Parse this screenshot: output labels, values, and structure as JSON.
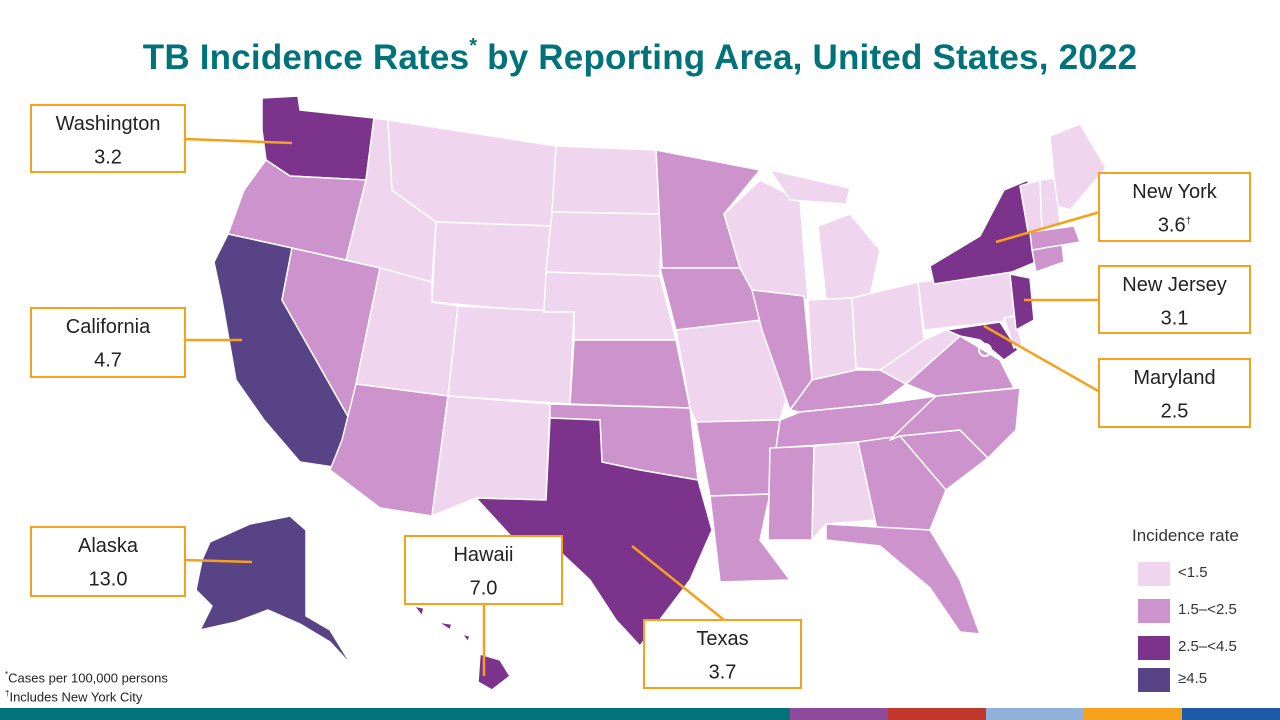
{
  "title": "TB Incidence Rates",
  "title_suffix": " by Reporting Area, United States, 2022",
  "title_marker": "*",
  "colors": {
    "lt1_5": "#efd5ee",
    "r1_5_2_5": "#cc93cc",
    "r2_5_4_5": "#7b338b",
    "ge4_5": "#574385",
    "callout_border": "#f5a11c",
    "title": "#00737a"
  },
  "callouts": [
    {
      "id": "washington",
      "state": "Washington",
      "rate": "3.2",
      "marker": ""
    },
    {
      "id": "new-york",
      "state": "New York",
      "rate": "3.6",
      "marker": "†"
    },
    {
      "id": "california",
      "state": "California",
      "rate": "4.7",
      "marker": ""
    },
    {
      "id": "new-jersey",
      "state": "New Jersey",
      "rate": "3.1",
      "marker": ""
    },
    {
      "id": "maryland",
      "state": "Maryland",
      "rate": "2.5",
      "marker": ""
    },
    {
      "id": "alaska",
      "state": "Alaska",
      "rate": "13.0",
      "marker": ""
    },
    {
      "id": "hawaii",
      "state": "Hawaii",
      "rate": "7.0",
      "marker": ""
    },
    {
      "id": "texas",
      "state": "Texas",
      "rate": "3.7",
      "marker": ""
    }
  ],
  "legend": {
    "title": "Incidence rate",
    "items": [
      "<1.5",
      "1.5–<2.5",
      "2.5–<4.5",
      "≥4.5"
    ]
  },
  "footnotes": {
    "cases_marker": "*",
    "cases": "Cases per 100,000 persons",
    "nyc_marker": "†",
    "nyc": "Includes New York City"
  },
  "footer_colors": [
    "#00737a",
    "#8e4a9b",
    "#c0382b",
    "#8fb0d9",
    "#f5a11c",
    "#1d5aa8"
  ]
}
